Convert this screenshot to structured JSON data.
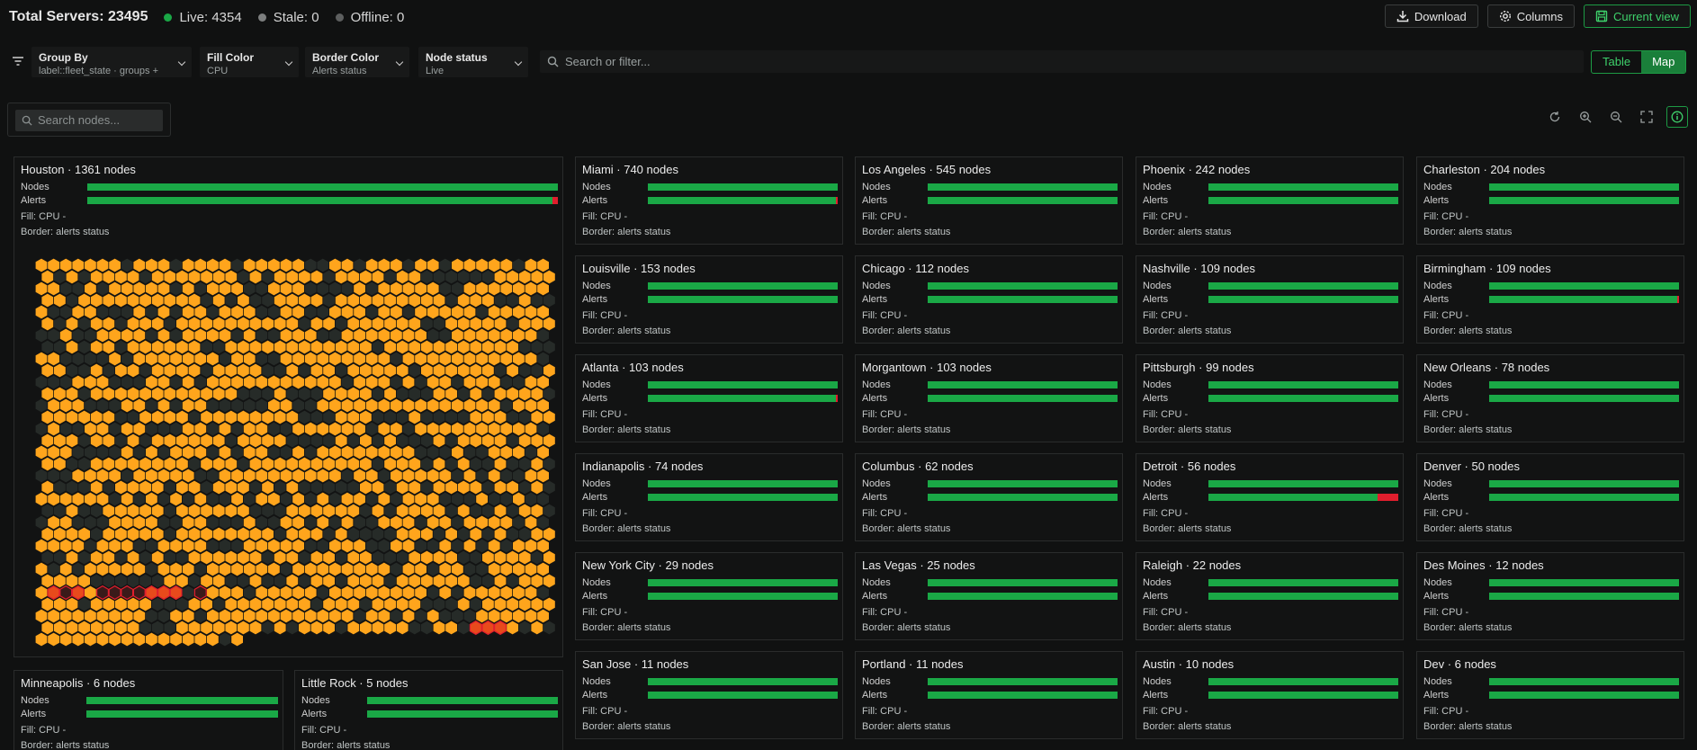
{
  "header": {
    "total": "Total Servers: 23495",
    "live": "Live: 4354",
    "stale": "Stale: 0",
    "offline": "Offline: 0",
    "download": "Download",
    "columns": "Columns",
    "current_view": "Current view"
  },
  "filters": {
    "group_by": {
      "title": "Group By",
      "value": "label::fleet_state · groups +"
    },
    "fill_color": {
      "title": "Fill Color",
      "value": "CPU"
    },
    "border_color": {
      "title": "Border Color",
      "value": "Alerts status"
    },
    "node_status": {
      "title": "Node status",
      "value": "Live"
    },
    "search_placeholder": "Search or filter...",
    "view_table": "Table",
    "view_map": "Map"
  },
  "node_search_placeholder": "Search nodes...",
  "colors": {
    "accent": "#1aa846",
    "alert": "#e01e2d",
    "cpu_fill": "#ffa51c",
    "hex_idle": "#262b28",
    "live": "#1aa846",
    "stale": "#7d7f7f",
    "offline": "#6a6c6c"
  },
  "card_labels": {
    "nodes": "Nodes",
    "alerts": "Alerts",
    "fill": "Fill: CPU -",
    "border": "Border: alerts status"
  },
  "groups": [
    {
      "name": "Houston · 1361 nodes",
      "alert_ratio": 0.011
    },
    {
      "name": "Miami · 740 nodes",
      "alert_ratio": 0.003
    },
    {
      "name": "Los Angeles · 545 nodes",
      "alert_ratio": 0
    },
    {
      "name": "Phoenix · 242 nodes",
      "alert_ratio": 0
    },
    {
      "name": "Charleston · 204 nodes",
      "alert_ratio": 0
    },
    {
      "name": "Louisville · 153 nodes",
      "alert_ratio": 0
    },
    {
      "name": "Chicago · 112 nodes",
      "alert_ratio": 0
    },
    {
      "name": "Nashville · 109 nodes",
      "alert_ratio": 0
    },
    {
      "name": "Birmingham · 109 nodes",
      "alert_ratio": 0.009
    },
    {
      "name": "Atlanta · 103 nodes",
      "alert_ratio": 0.008
    },
    {
      "name": "Morgantown · 103 nodes",
      "alert_ratio": 0
    },
    {
      "name": "Pittsburgh ·  99 nodes",
      "alert_ratio": 0
    },
    {
      "name": "New Orleans · 78 nodes",
      "alert_ratio": 0
    },
    {
      "name": "Indianapolis · 74 nodes",
      "alert_ratio": 0
    },
    {
      "name": "Columbus · 62 nodes",
      "alert_ratio": 0
    },
    {
      "name": "Detroit · 56 nodes",
      "alert_ratio": 0.107
    },
    {
      "name": "Denver · 50 nodes",
      "alert_ratio": 0
    },
    {
      "name": "New York City · 29 nodes",
      "alert_ratio": 0
    },
    {
      "name": "Las Vegas · 25 nodes",
      "alert_ratio": 0
    },
    {
      "name": "Raleigh · 22 nodes",
      "alert_ratio": 0
    },
    {
      "name": "Des Moines · 12 nodes",
      "alert_ratio": 0
    },
    {
      "name": "San Jose · 11 nodes",
      "alert_ratio": 0
    },
    {
      "name": "Portland  · 11 nodes",
      "alert_ratio": 0
    },
    {
      "name": "Austin · 10 nodes",
      "alert_ratio": 0
    },
    {
      "name": "Dev · 6 nodes",
      "alert_ratio": 0
    },
    {
      "name": "Minneapolis  · 6 nodes",
      "alert_ratio": 0
    },
    {
      "name": "Little Rock · 5 nodes",
      "alert_ratio": 0
    }
  ]
}
